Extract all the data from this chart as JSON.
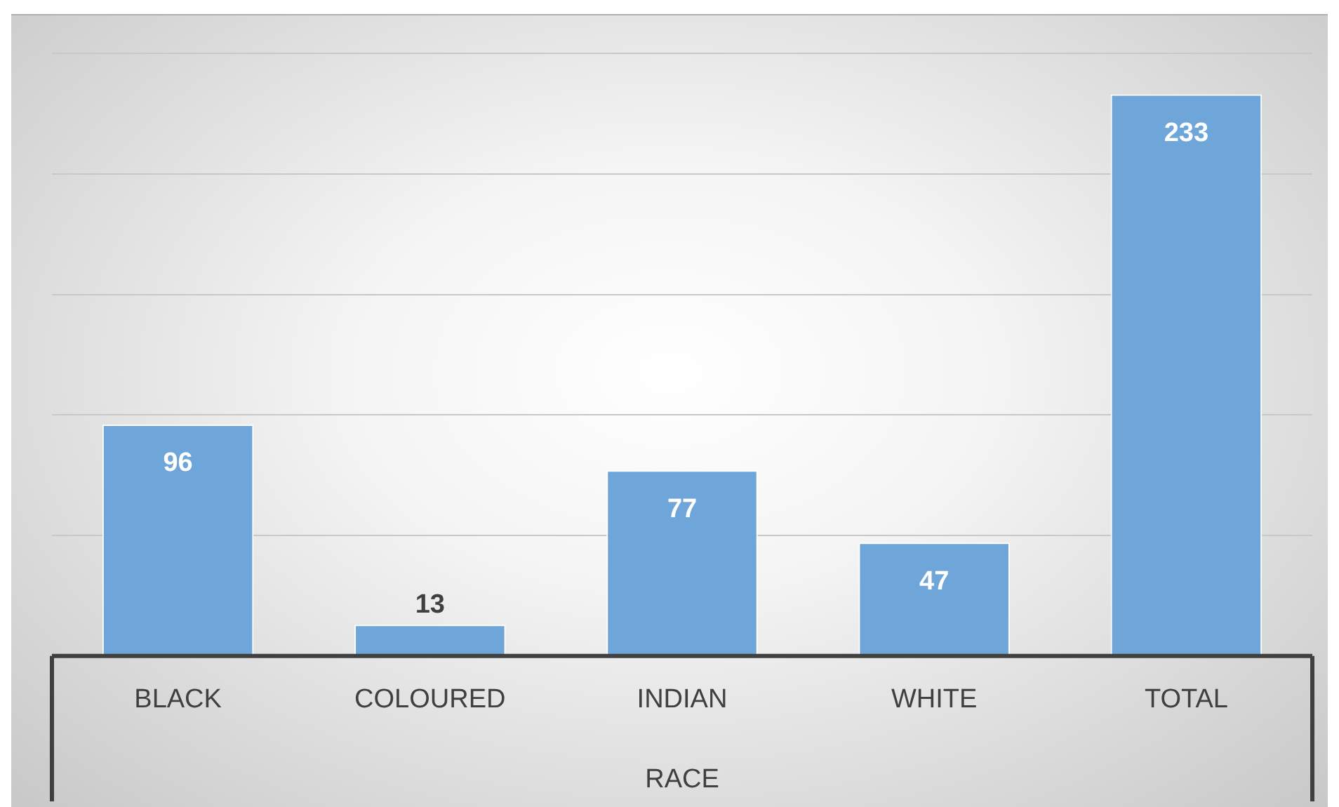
{
  "chart_data": {
    "type": "bar",
    "xlabel": "RACE",
    "categories": [
      "BLACK",
      "COLOURED",
      "INDIAN",
      "WHITE",
      "TOTAL"
    ],
    "values": [
      96,
      13,
      77,
      47,
      233
    ],
    "color": "#6fa6d9",
    "ylim": [
      0,
      250
    ],
    "yticks": [
      {
        "value": 0,
        "label": null
      },
      {
        "value": 50,
        "label": null
      },
      {
        "value": 100,
        "label": null
      },
      {
        "value": 150,
        "label": null
      },
      {
        "value": 200,
        "label": null
      },
      {
        "value": 250,
        "label": null
      }
    ],
    "grid": "y",
    "tick_labels": "x",
    "data_labels": true
  }
}
